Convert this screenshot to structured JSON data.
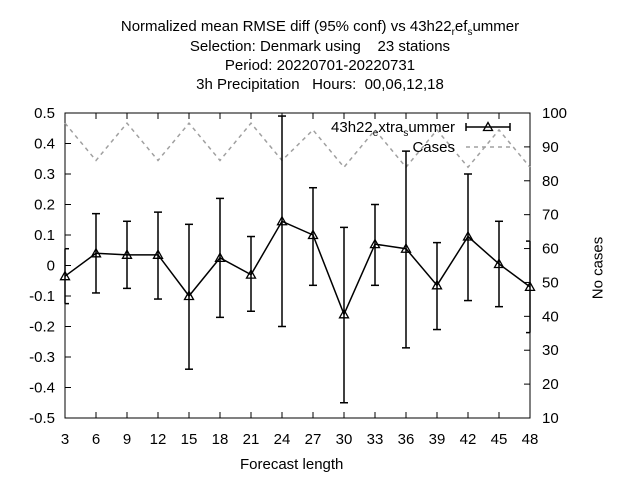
{
  "title": {
    "line1": {
      "a": "Normalized mean RMSE diff (95% conf) vs 43h22",
      "s1": "r",
      "b": "ef",
      "s2": "s",
      "c": "ummer"
    },
    "line2": "Selection: Denmark using    23 stations",
    "line3": "Period: 20220701-20220731",
    "line4": "3h Precipitation   Hours:  00,06,12,18"
  },
  "chart_data": {
    "type": "line",
    "xlabel": "Forecast length",
    "ylabel": "",
    "y2label": "No cases",
    "xlim": [
      3,
      48
    ],
    "ylim": [
      -0.5,
      0.5
    ],
    "y2lim": [
      10,
      100
    ],
    "xticks": [
      "3",
      "6",
      "9",
      "12",
      "15",
      "18",
      "21",
      "24",
      "27",
      "30",
      "33",
      "36",
      "39",
      "42",
      "45",
      "48"
    ],
    "yticks": [
      "0.5",
      "0.4",
      "0.3",
      "0.2",
      "0.1",
      "0",
      "-0.1",
      "-0.2",
      "-0.3",
      "-0.4",
      "-0.5"
    ],
    "y2ticks": [
      "100",
      "90",
      "80",
      "70",
      "60",
      "50",
      "40",
      "30",
      "20",
      "10"
    ],
    "grid": false,
    "legend_position": "top-right",
    "series": [
      {
        "name": "43h22_extra_summer",
        "label_parts": {
          "a": "43h22",
          "s1": "e",
          "b": "xtra",
          "s2": "s",
          "c": "ummer"
        },
        "axis": "y1",
        "style": "line-errorbars-triangle",
        "color": "#000000",
        "x": [
          3,
          6,
          9,
          12,
          15,
          18,
          21,
          24,
          27,
          30,
          33,
          36,
          39,
          42,
          45,
          48
        ],
        "y": [
          -0.035,
          0.04,
          0.035,
          0.035,
          -0.1,
          0.025,
          -0.03,
          0.145,
          0.1,
          -0.16,
          0.07,
          0.055,
          -0.065,
          0.095,
          0.005,
          -0.07
        ],
        "err_low": [
          -0.125,
          -0.09,
          -0.075,
          -0.11,
          -0.34,
          -0.17,
          -0.15,
          -0.2,
          -0.065,
          -0.45,
          -0.065,
          -0.27,
          -0.21,
          -0.115,
          -0.135,
          -0.22
        ],
        "err_high": [
          0.055,
          0.17,
          0.145,
          0.175,
          0.135,
          0.22,
          0.095,
          0.49,
          0.255,
          0.125,
          0.2,
          0.375,
          0.075,
          0.3,
          0.145,
          0.08
        ]
      },
      {
        "name": "Cases",
        "axis": "y2",
        "style": "dashed",
        "color": "#a0a0a0",
        "x": [
          3,
          6,
          9,
          12,
          15,
          18,
          21,
          24,
          27,
          30,
          33,
          36,
          39,
          42,
          45,
          48
        ],
        "y": [
          97,
          86,
          97,
          86,
          97,
          86,
          97,
          86,
          95,
          84,
          95,
          84,
          95,
          84,
          95,
          84
        ]
      }
    ]
  }
}
